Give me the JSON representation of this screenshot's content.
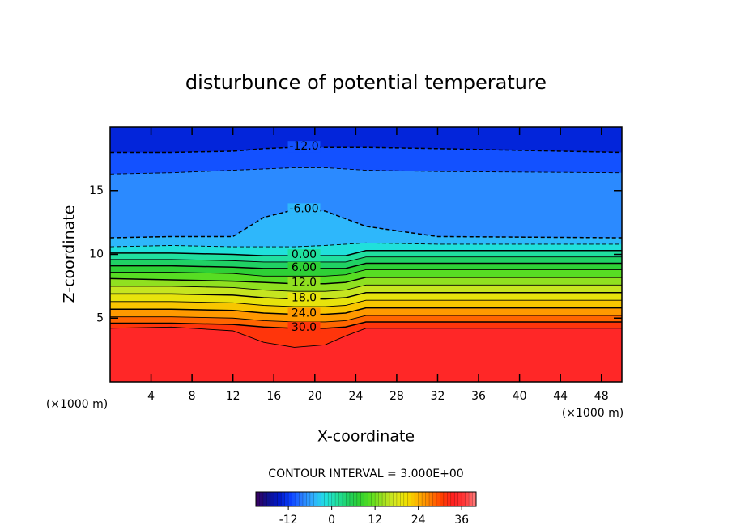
{
  "chart_data": {
    "type": "contour",
    "title": "disturbunce of potential temperature",
    "xlabel": "X-coordinate",
    "ylabel": "Z-coordinate",
    "xunit": "(×1000 m)",
    "yunit": "(×1000 m)",
    "xlim": [
      0,
      50
    ],
    "ylim": [
      0,
      20
    ],
    "xticks": [
      4,
      8,
      12,
      16,
      20,
      24,
      28,
      32,
      36,
      40,
      44,
      48
    ],
    "yticks": [
      5,
      10,
      15
    ],
    "x": [
      0,
      6,
      12,
      15,
      18,
      21,
      23,
      25,
      32,
      50
    ],
    "contours": [
      {
        "level": -12,
        "label": "-12.0",
        "values": [
          18.0,
          18.0,
          18.1,
          18.3,
          18.4,
          18.4,
          18.4,
          18.4,
          18.3,
          18.0
        ]
      },
      {
        "level": -9,
        "values": [
          16.3,
          16.4,
          16.6,
          16.7,
          16.8,
          16.8,
          16.7,
          16.6,
          16.5,
          16.4
        ]
      },
      {
        "level": -6,
        "label": "-6.00",
        "values": [
          11.3,
          11.4,
          11.4,
          12.9,
          13.5,
          13.4,
          12.8,
          12.2,
          11.4,
          11.3
        ]
      },
      {
        "level": -3,
        "values": [
          10.6,
          10.7,
          10.6,
          10.6,
          10.6,
          10.7,
          10.8,
          10.9,
          10.8,
          10.8
        ]
      },
      {
        "level": 0,
        "label": "0.00",
        "values": [
          10.1,
          10.1,
          10.0,
          9.9,
          9.9,
          9.9,
          9.9,
          10.3,
          10.3,
          10.3
        ]
      },
      {
        "level": 3,
        "values": [
          9.6,
          9.6,
          9.5,
          9.4,
          9.4,
          9.4,
          9.4,
          9.8,
          9.8,
          9.8
        ]
      },
      {
        "level": 6,
        "label": "6.00",
        "values": [
          9.1,
          9.1,
          9.0,
          8.9,
          8.9,
          8.9,
          8.9,
          9.3,
          9.3,
          9.3
        ]
      },
      {
        "level": 9,
        "values": [
          8.6,
          8.6,
          8.5,
          8.3,
          8.3,
          8.3,
          8.4,
          8.8,
          8.8,
          8.8
        ]
      },
      {
        "level": 12,
        "label": "12.0",
        "values": [
          8.1,
          8.0,
          7.9,
          7.8,
          7.7,
          7.7,
          7.8,
          8.2,
          8.2,
          8.2
        ]
      },
      {
        "level": 15,
        "values": [
          7.5,
          7.5,
          7.4,
          7.2,
          7.1,
          7.1,
          7.2,
          7.6,
          7.6,
          7.6
        ]
      },
      {
        "level": 18,
        "label": "18.0",
        "values": [
          6.9,
          6.9,
          6.8,
          6.6,
          6.5,
          6.5,
          6.6,
          7.0,
          7.0,
          7.0
        ]
      },
      {
        "level": 21,
        "values": [
          6.3,
          6.3,
          6.2,
          6.0,
          5.9,
          5.9,
          6.0,
          6.4,
          6.4,
          6.4
        ]
      },
      {
        "level": 24,
        "label": "24.0",
        "values": [
          5.7,
          5.7,
          5.6,
          5.4,
          5.3,
          5.3,
          5.4,
          5.8,
          5.8,
          5.8
        ]
      },
      {
        "level": 27,
        "values": [
          5.1,
          5.1,
          5.0,
          4.8,
          4.7,
          4.7,
          4.8,
          5.2,
          5.2,
          5.2
        ]
      },
      {
        "level": 30,
        "label": "30.0",
        "values": [
          4.6,
          4.6,
          4.5,
          4.3,
          4.2,
          4.2,
          4.3,
          4.7,
          4.7,
          4.7
        ]
      },
      {
        "level": 33,
        "values": [
          4.2,
          4.3,
          4.0,
          3.1,
          2.7,
          2.9,
          3.6,
          4.2,
          4.2,
          4.2
        ]
      }
    ],
    "note": "CONTOUR INTERVAL = 3.000E+00",
    "colorbar": {
      "lim": [
        -21,
        40
      ],
      "ticks": [
        -12,
        0,
        12,
        24,
        36
      ],
      "colors": [
        "#3a0060",
        "#10108a",
        "#0018c8",
        "#0a40ff",
        "#2a80ff",
        "#30b0ff",
        "#20e0e0",
        "#20e0a0",
        "#20d060",
        "#30d030",
        "#60e020",
        "#a0e020",
        "#d8e820",
        "#f0e000",
        "#ffb000",
        "#ff8000",
        "#ff4000",
        "#ff2020",
        "#ff3838",
        "#ff8080"
      ]
    }
  }
}
